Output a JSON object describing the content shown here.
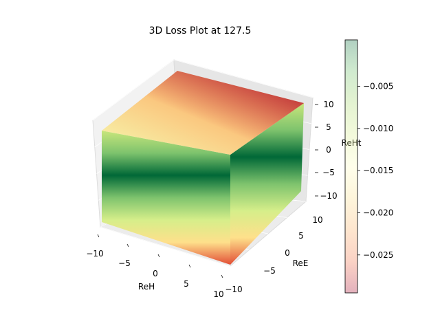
{
  "chart_data": {
    "type": "3d-scatter",
    "title": "3D Loss Plot at 127.5",
    "x_axis": {
      "label": "ReH",
      "ticks": [
        "−10",
        "−5",
        "0",
        "5",
        "10"
      ],
      "range": [
        -10,
        10
      ]
    },
    "y_axis": {
      "label": "ReE",
      "ticks": [
        "−10",
        "−5",
        "0",
        "5",
        "10"
      ],
      "range": [
        -10,
        10
      ]
    },
    "z_axis": {
      "label": "ReHt",
      "ticks": [
        "−10",
        "−5",
        "0",
        "5",
        "10"
      ],
      "range": [
        -10,
        10
      ]
    },
    "colorbar": {
      "colormap": "RdYlGn",
      "ticks": [
        "−0.005",
        "−0.010",
        "−0.015",
        "−0.020",
        "−0.025"
      ],
      "tick_values": [
        -0.005,
        -0.01,
        -0.015,
        -0.02,
        -0.025
      ],
      "range": [
        -0.0295,
        0.0005
      ]
    },
    "grid": true,
    "surface_colors": {
      "top": {
        "front_left": "#f6fab0",
        "back_left": "#fbc27a",
        "back_right": "#fa9c58",
        "front_right": "#a50026"
      },
      "front_bands_top_to_bottom": [
        "#c8e67c",
        "#7ec36d",
        "#006837",
        "#7ec36d",
        "#d6ee8a",
        "#fee08b",
        "#e24e35"
      ]
    }
  }
}
